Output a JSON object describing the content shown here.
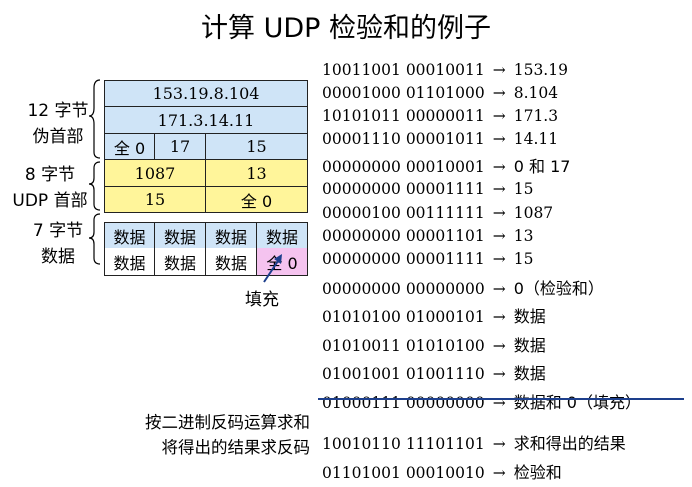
{
  "title": "计算 UDP 检验和的例子",
  "labels": {
    "pseudo_header": [
      "12 字节",
      "伪首部"
    ],
    "udp_header": [
      "8 字节",
      "UDP 首部"
    ],
    "data": [
      "7 字节",
      "数据"
    ],
    "padding": "填充"
  },
  "grid": {
    "row1": "153.19.8.104",
    "row2": "171.3.14.11",
    "row3": [
      "全 0",
      "17",
      "15"
    ],
    "row4": [
      "1087",
      "13"
    ],
    "row5": [
      "15",
      "全 0"
    ],
    "row6": [
      "数据",
      "数据",
      "数据",
      "数据"
    ],
    "row7": [
      "数据",
      "数据",
      "数据",
      "全 0"
    ]
  },
  "binary_lines": [
    {
      "bits": "10011001 00010011",
      "result": "153.19"
    },
    {
      "bits": "00001000 01101000",
      "result": "8.104"
    },
    {
      "bits": "10101011 00000011",
      "result": "171.3"
    },
    {
      "bits": "00001110 00001011",
      "result": "14.11"
    },
    {
      "bits": "00000000 00010001",
      "result": "0 和 17"
    },
    {
      "bits": "00000000 00001111",
      "result": "15"
    },
    {
      "bits": "00000100 00111111",
      "result": "1087"
    },
    {
      "bits": "00000000 00001101",
      "result": "13"
    },
    {
      "bits": "00000000 00001111",
      "result": "15"
    },
    {
      "bits": "00000000 00000000",
      "result": "0（检验和）"
    },
    {
      "bits": "01010100 01000101",
      "result": "数据"
    },
    {
      "bits": "01010011 01010100",
      "result": "数据"
    },
    {
      "bits": "01001001 01001110",
      "result": "数据"
    },
    {
      "bits": "01000111 00000000",
      "result": "数据和 0（填充）"
    },
    {
      "bits": "10010110 11101101",
      "result": "求和得出的结果"
    },
    {
      "bits": "01101001 00010010",
      "result": "检验和"
    }
  ],
  "arrow": "→",
  "note": [
    "按二进制反码运算求和",
    "将得出的结果求反码"
  ],
  "colors": {
    "pseudo": "#cfe4f7",
    "udp": "#fff59a",
    "pad": "#f5c3ef",
    "strike": "#1d3f8c"
  }
}
